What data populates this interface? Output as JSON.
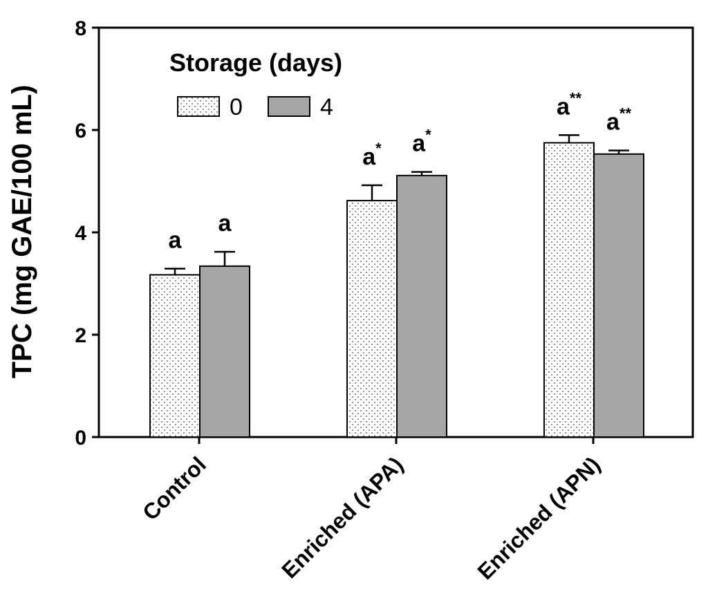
{
  "chart_data": {
    "type": "bar",
    "ylabel": "TPC (mg GAE/100 mL)",
    "ylim": [
      0,
      8
    ],
    "yticks": [
      0,
      2,
      4,
      6,
      8
    ],
    "categories": [
      "Control",
      "Enriched (APA)",
      "Enriched (APN)"
    ],
    "legend": {
      "title": "Storage (days)",
      "placement": "top-left"
    },
    "series": [
      {
        "name": "0",
        "pattern": "dotted",
        "color": "#ffffff",
        "values": [
          3.17,
          4.62,
          5.75
        ],
        "errors": [
          0.12,
          0.3,
          0.15
        ]
      },
      {
        "name": "4",
        "pattern": "solid",
        "color": "#a6a6a6",
        "values": [
          3.34,
          5.11,
          5.53
        ],
        "errors": [
          0.28,
          0.07,
          0.07
        ]
      }
    ],
    "annotations": [
      [
        "a",
        "a"
      ],
      [
        "a*",
        "a*"
      ],
      [
        "a**",
        "a**"
      ]
    ]
  }
}
